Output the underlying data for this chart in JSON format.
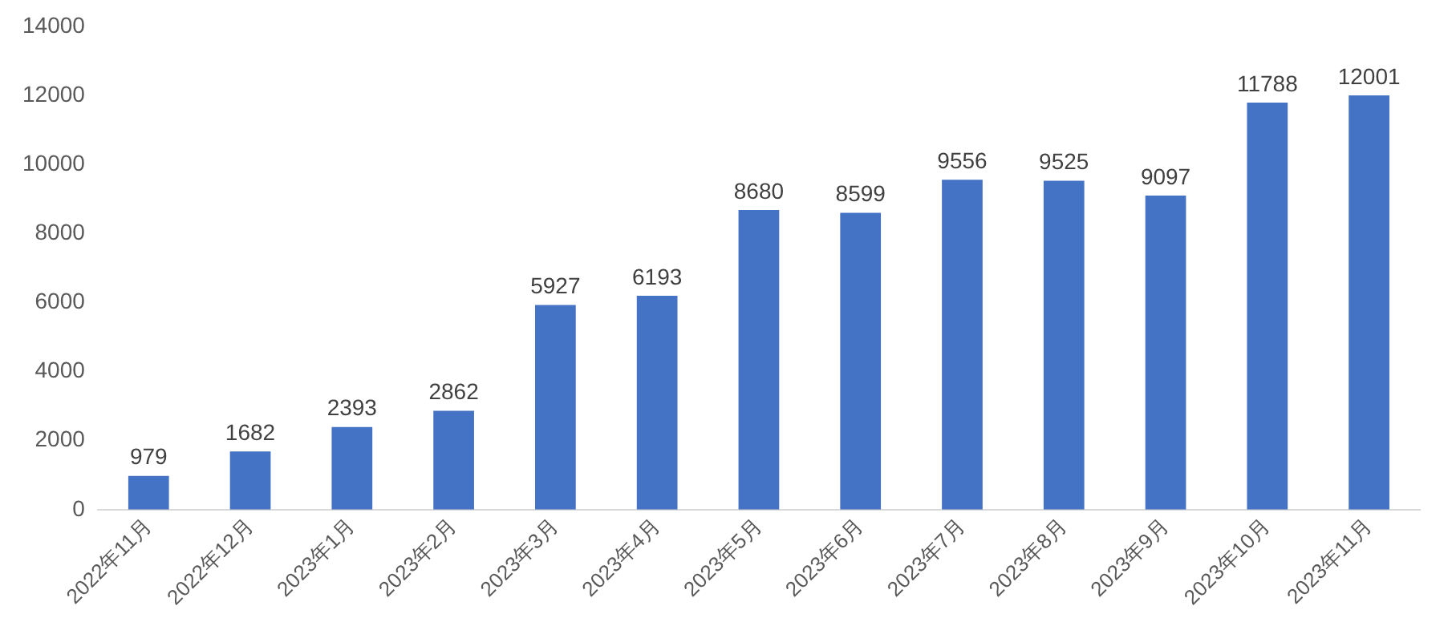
{
  "chart_data": {
    "type": "bar",
    "categories": [
      "2022年11月",
      "2022年12月",
      "2023年1月",
      "2023年2月",
      "2023年3月",
      "2023年4月",
      "2023年5月",
      "2023年6月",
      "2023年7月",
      "2023年8月",
      "2023年9月",
      "2023年10月",
      "2023年11月"
    ],
    "values": [
      979,
      1682,
      2393,
      2862,
      5927,
      6193,
      8680,
      8599,
      9556,
      9525,
      9097,
      11788,
      12001
    ],
    "color": "#4472c4",
    "ylim": [
      0,
      14000
    ],
    "yticks": [
      0,
      2000,
      4000,
      6000,
      8000,
      10000,
      12000,
      14000
    ],
    "grid": false,
    "legend": false,
    "data_labels": true
  }
}
